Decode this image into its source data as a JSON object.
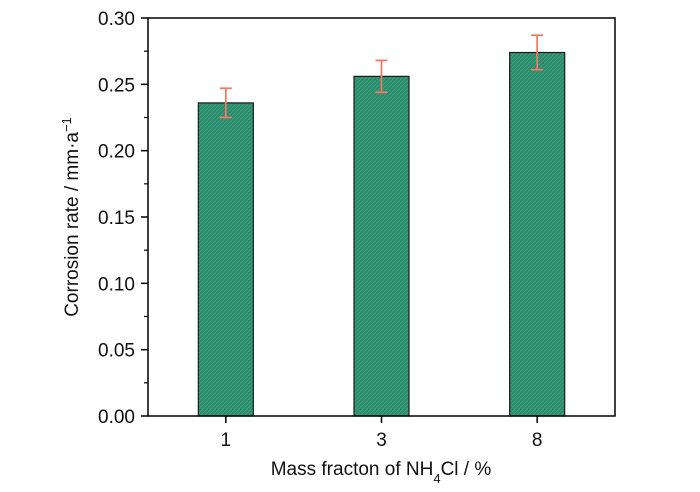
{
  "chart_data": {
    "type": "bar",
    "categories": [
      "1",
      "3",
      "8"
    ],
    "values": [
      0.236,
      0.256,
      0.274
    ],
    "error": [
      0.011,
      0.012,
      0.013
    ],
    "xlabel": {
      "prefix": "Mass fracton of NH",
      "subscript": "4",
      "suffix": "Cl / %"
    },
    "ylabel": {
      "main": "Corrosion rate / mm·a",
      "superscript": "−1"
    },
    "ylim": [
      0.0,
      0.3
    ],
    "yticks": [
      "0.00",
      "0.05",
      "0.10",
      "0.15",
      "0.20",
      "0.25",
      "0.30"
    ],
    "grid": false,
    "colors": {
      "bar_fill": "#2e8b6b",
      "bar_edge": "#1a1a1a",
      "error_bar": "#ef7a6a",
      "axis": "#000000"
    }
  }
}
